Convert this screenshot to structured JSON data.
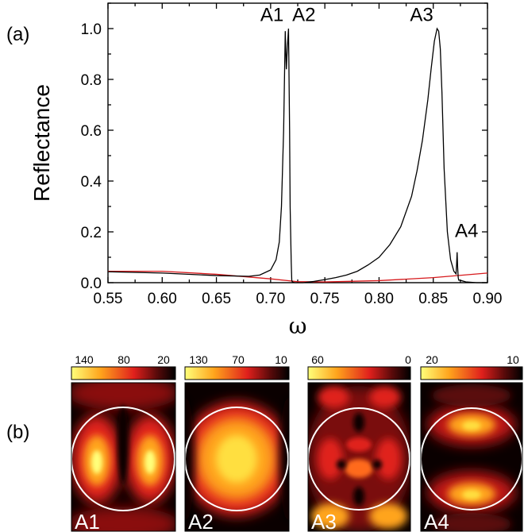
{
  "panel_a_label": "(a)",
  "panel_b_label": "(b)",
  "colors": {
    "black_curve": "#000000",
    "red_curve": "#d7191c"
  },
  "chart_data": [
    {
      "type": "line",
      "xlabel": "ω",
      "ylabel": "Reflectance",
      "xlim": [
        0.55,
        0.9
      ],
      "ylim": [
        0.0,
        1.1
      ],
      "x_ticks": [
        0.55,
        0.6,
        0.65,
        0.7,
        0.75,
        0.8,
        0.85,
        0.9
      ],
      "x_tick_labels": [
        "0.55",
        "0.60",
        "0.65",
        "0.70",
        "0.75",
        "0.80",
        "0.85",
        "0.90"
      ],
      "y_ticks": [
        0.0,
        0.2,
        0.4,
        0.6,
        0.8,
        1.0
      ],
      "y_tick_labels": [
        "0.0",
        "0.2",
        "0.4",
        "0.6",
        "0.8",
        "1.0"
      ],
      "series": [
        {
          "color": "#000000",
          "x": [
            0.55,
            0.6,
            0.65,
            0.68,
            0.69,
            0.7,
            0.705,
            0.708,
            0.71,
            0.712,
            0.7135,
            0.7145,
            0.7155,
            0.7165,
            0.7175,
            0.718,
            0.719,
            0.7195,
            0.72,
            0.722,
            0.725,
            0.73,
            0.74,
            0.75,
            0.76,
            0.77,
            0.78,
            0.79,
            0.8,
            0.81,
            0.82,
            0.83,
            0.835,
            0.84,
            0.845,
            0.848,
            0.851,
            0.8535,
            0.855,
            0.8565,
            0.858,
            0.86,
            0.863,
            0.866,
            0.869,
            0.871,
            0.8715,
            0.872,
            0.8725,
            0.873,
            0.8735,
            0.874,
            0.876,
            0.88,
            0.89,
            0.9
          ],
          "y": [
            0.043,
            0.038,
            0.028,
            0.025,
            0.03,
            0.05,
            0.09,
            0.16,
            0.3,
            0.6,
            0.99,
            0.84,
            0.93,
            1.0,
            0.6,
            0.3,
            0.08,
            0.01,
            0.003,
            0.0,
            0.0,
            0.0,
            0.005,
            0.012,
            0.02,
            0.03,
            0.045,
            0.07,
            0.1,
            0.15,
            0.22,
            0.34,
            0.44,
            0.56,
            0.72,
            0.84,
            0.95,
            1.0,
            0.99,
            0.92,
            0.75,
            0.45,
            0.2,
            0.09,
            0.045,
            0.035,
            0.07,
            0.12,
            0.06,
            0.02,
            0.01,
            0.01,
            0.008,
            0.003,
            0.0,
            0.0
          ]
        },
        {
          "color": "#d7191c",
          "x": [
            0.55,
            0.6,
            0.65,
            0.7,
            0.725,
            0.75,
            0.8,
            0.85,
            0.9
          ],
          "y": [
            0.045,
            0.045,
            0.033,
            0.015,
            0.004,
            0.003,
            0.008,
            0.02,
            0.038
          ]
        }
      ],
      "annotations": [
        {
          "text": "A1",
          "x": 0.712,
          "y": 1.03,
          "anchor": "end"
        },
        {
          "text": "A2",
          "x": 0.72,
          "y": 1.03,
          "anchor": "start"
        },
        {
          "text": "A3",
          "x": 0.85,
          "y": 1.03,
          "anchor": "end"
        },
        {
          "text": "A4",
          "x": 0.87,
          "y": 0.18,
          "anchor": "start"
        }
      ]
    },
    {
      "type": "heatmap",
      "panels": [
        {
          "name": "A1",
          "colorbar_labels": [
            "140",
            "80",
            "20"
          ]
        },
        {
          "name": "A2",
          "colorbar_labels": [
            "130",
            "70",
            "10"
          ]
        },
        {
          "name": "A3",
          "colorbar_labels": [
            "60",
            "0"
          ]
        },
        {
          "name": "A4",
          "colorbar_labels": [
            "20",
            "10"
          ]
        }
      ]
    }
  ]
}
